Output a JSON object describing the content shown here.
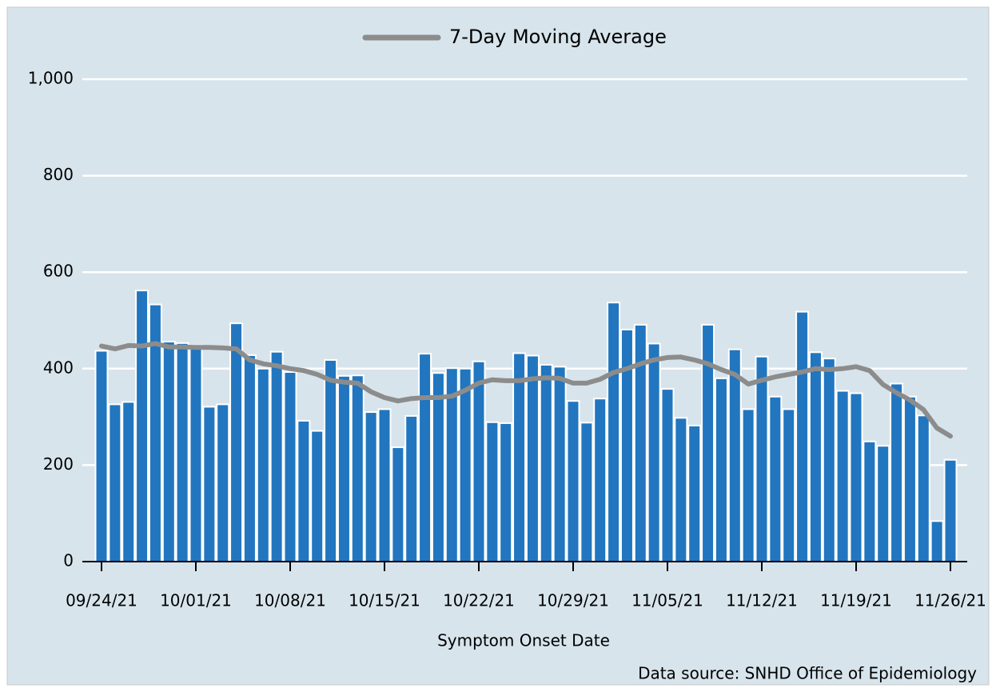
{
  "chart_data": {
    "type": "bar",
    "categories": [
      "09/24/21",
      null,
      null,
      null,
      null,
      null,
      null,
      "10/01/21",
      null,
      null,
      null,
      null,
      null,
      null,
      "10/08/21",
      null,
      null,
      null,
      null,
      null,
      null,
      "10/15/21",
      null,
      null,
      null,
      null,
      null,
      null,
      "10/22/21",
      null,
      null,
      null,
      null,
      null,
      null,
      "10/29/21",
      null,
      null,
      null,
      null,
      null,
      null,
      "11/05/21",
      null,
      null,
      null,
      null,
      null,
      null,
      "11/12/21",
      null,
      null,
      null,
      null,
      null,
      null,
      "11/19/21",
      null,
      null,
      null,
      null,
      null,
      null,
      "11/26/21"
    ],
    "series": [
      {
        "type": "bar",
        "color": "#2176bf",
        "values": [
          437,
          326,
          331,
          562,
          533,
          456,
          453,
          448,
          321,
          326,
          494,
          428,
          400,
          435,
          393,
          292,
          271,
          418,
          385,
          386,
          310,
          316,
          237,
          302,
          431,
          391,
          401,
          400,
          415,
          289,
          287,
          432,
          427,
          408,
          404,
          333,
          288,
          338,
          537,
          481,
          491,
          452,
          358,
          298,
          282,
          491,
          380,
          440,
          316,
          425,
          342,
          316,
          518,
          434,
          421,
          354,
          349,
          249,
          240,
          369,
          342,
          303,
          84,
          211
        ]
      },
      {
        "type": "line",
        "name": "7-Day Moving Average",
        "color": "#8c8c8c",
        "values": [
          447,
          441,
          448,
          447,
          452,
          445,
          445,
          444,
          444,
          443,
          441,
          418,
          410,
          406,
          400,
          396,
          388,
          376,
          372,
          370,
          352,
          340,
          333,
          338,
          340,
          340,
          343,
          355,
          370,
          377,
          375,
          375,
          379,
          381,
          380,
          370,
          370,
          378,
          392,
          400,
          410,
          418,
          423,
          424,
          418,
          410,
          398,
          388,
          368,
          376,
          383,
          388,
          393,
          400,
          398,
          400,
          404,
          396,
          367,
          350,
          335,
          315,
          277,
          260
        ]
      }
    ],
    "x_label": "Symptom Onset Date",
    "source": "Data source: SNHD Office of Epidemiology",
    "ylim": [
      0,
      1000
    ],
    "yticks": [
      0,
      200,
      400,
      600,
      800,
      {
        "value": 1000,
        "label": "1,000"
      }
    ],
    "grid": true,
    "legend": "top"
  }
}
